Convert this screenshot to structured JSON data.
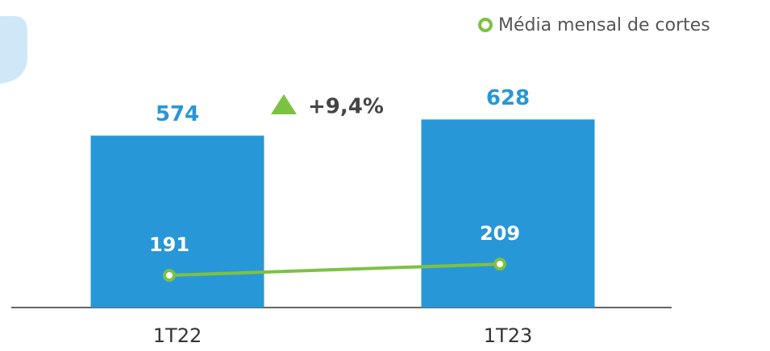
{
  "chart_data": {
    "type": "bar",
    "categories": [
      "1T22",
      "1T23"
    ],
    "values": [
      574,
      628
    ],
    "color": "#2897d8",
    "series": [
      {
        "name": "Média mensal de cortes",
        "color": "#7cc242",
        "values": [
          191,
          209
        ],
        "axis": "y2"
      }
    ],
    "annotation": "+9,4%",
    "annotation_color": "#7cc242",
    "legend": "top-right"
  }
}
